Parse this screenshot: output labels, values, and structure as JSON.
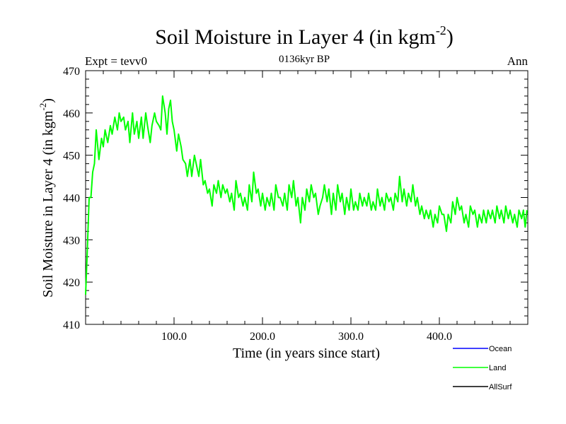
{
  "chart_data": {
    "type": "line",
    "title_main": "Soil Moisture in Layer 4 (in kgm",
    "title_sup": "-2",
    "title_end": ")",
    "subtitle_left": "Expt = tevv0",
    "subtitle_center": "0136kyr BP",
    "subtitle_right": "Ann",
    "xlabel": "Time (in years since start)",
    "ylabel_main": "Soil Moisture in Layer 4 (in kgm",
    "ylabel_sup": "-2",
    "ylabel_end": ")",
    "xlim": [
      0,
      500
    ],
    "ylim": [
      410,
      470
    ],
    "x_ticks": [
      {
        "value": 100,
        "label": "100.0"
      },
      {
        "value": 200,
        "label": "200.0"
      },
      {
        "value": 300,
        "label": "300.0"
      },
      {
        "value": 400,
        "label": "400.0"
      }
    ],
    "y_ticks": [
      {
        "value": 410,
        "label": "410"
      },
      {
        "value": 420,
        "label": "420"
      },
      {
        "value": 430,
        "label": "430"
      },
      {
        "value": 440,
        "label": "440"
      },
      {
        "value": 450,
        "label": "450"
      },
      {
        "value": 460,
        "label": "460"
      },
      {
        "value": 470,
        "label": "470"
      }
    ],
    "legend": [
      {
        "name": "Ocean",
        "color": "#0000ff"
      },
      {
        "name": "Land",
        "color": "#00ff00"
      },
      {
        "name": "AllSurf",
        "color": "#000000"
      }
    ],
    "series": [
      {
        "name": "Land",
        "color": "#00ff00",
        "x": [
          0,
          2,
          4,
          6,
          8,
          10,
          12,
          15,
          18,
          20,
          22,
          25,
          28,
          30,
          33,
          36,
          38,
          40,
          43,
          45,
          48,
          50,
          53,
          55,
          58,
          60,
          63,
          65,
          68,
          70,
          73,
          75,
          78,
          80,
          83,
          85,
          87,
          90,
          92,
          94,
          96,
          98,
          100,
          103,
          105,
          108,
          110,
          113,
          115,
          118,
          120,
          123,
          125,
          128,
          130,
          133,
          135,
          138,
          140,
          143,
          145,
          148,
          150,
          153,
          155,
          158,
          160,
          163,
          165,
          168,
          170,
          173,
          175,
          178,
          180,
          183,
          185,
          188,
          190,
          193,
          195,
          198,
          200,
          203,
          205,
          208,
          210,
          213,
          215,
          218,
          220,
          223,
          225,
          228,
          230,
          233,
          235,
          238,
          240,
          243,
          245,
          248,
          250,
          253,
          255,
          258,
          260,
          263,
          265,
          268,
          270,
          273,
          275,
          278,
          280,
          283,
          285,
          288,
          290,
          293,
          295,
          298,
          300,
          303,
          305,
          308,
          310,
          313,
          315,
          318,
          320,
          323,
          325,
          328,
          330,
          333,
          335,
          338,
          340,
          343,
          345,
          348,
          350,
          353,
          355,
          358,
          360,
          363,
          365,
          368,
          370,
          373,
          375,
          378,
          380,
          383,
          385,
          388,
          390,
          393,
          395,
          398,
          400,
          403,
          405,
          408,
          410,
          413,
          415,
          418,
          420,
          423,
          425,
          428,
          430,
          433,
          435,
          438,
          440,
          443,
          445,
          448,
          450,
          453,
          455,
          458,
          460,
          463,
          465,
          468,
          470,
          473,
          475,
          478,
          480,
          483,
          485,
          488,
          490,
          493,
          495,
          497,
          499
        ],
        "y": [
          417,
          428,
          440,
          440,
          446,
          448,
          456,
          449,
          454,
          452,
          456,
          453,
          457,
          455,
          459,
          456,
          460,
          458,
          459,
          456,
          458,
          453,
          460,
          455,
          458,
          454,
          459,
          454,
          460,
          457,
          453,
          457,
          460,
          458,
          457,
          456,
          464,
          460,
          455,
          461,
          463,
          458,
          456,
          451,
          455,
          452,
          449,
          448,
          445,
          449,
          445,
          450,
          448,
          445,
          449,
          443,
          444,
          441,
          442,
          438,
          443,
          441,
          444,
          440,
          443,
          441,
          442,
          439,
          441,
          437,
          444,
          440,
          441,
          438,
          440,
          437,
          443,
          439,
          446,
          441,
          442,
          438,
          441,
          437,
          440,
          438,
          441,
          437,
          443,
          440,
          440,
          438,
          441,
          437,
          443,
          440,
          444,
          438,
          440,
          434,
          440,
          437,
          442,
          439,
          443,
          440,
          441,
          436,
          438,
          440,
          443,
          439,
          442,
          436,
          441,
          437,
          443,
          439,
          441,
          436,
          440,
          437,
          442,
          437,
          439,
          437,
          441,
          438,
          440,
          438,
          441,
          437,
          439,
          437,
          442,
          438,
          440,
          437,
          441,
          439,
          440,
          437,
          441,
          439,
          445,
          439,
          442,
          438,
          441,
          439,
          443,
          438,
          440,
          436,
          438,
          435,
          437,
          435,
          437,
          433,
          436,
          434,
          438,
          436,
          436,
          432,
          436,
          434,
          439,
          436,
          440,
          437,
          438,
          434,
          436,
          433,
          438,
          436,
          437,
          433,
          436,
          434,
          437,
          434,
          437,
          435,
          437,
          434,
          438,
          435,
          437,
          434,
          438,
          435,
          437,
          434,
          436,
          433,
          437,
          435,
          437,
          433,
          437
        ]
      },
      {
        "name": "Ocean",
        "color": "#0000ff",
        "x": [],
        "y": []
      },
      {
        "name": "AllSurf",
        "color": "#000000",
        "x": [],
        "y": []
      }
    ]
  }
}
